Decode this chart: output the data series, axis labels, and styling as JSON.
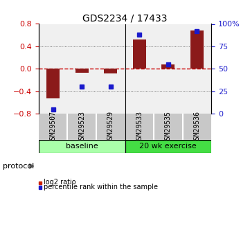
{
  "title": "GDS2234 / 17433",
  "samples": [
    "GSM29507",
    "GSM29523",
    "GSM29529",
    "GSM29533",
    "GSM29535",
    "GSM29536"
  ],
  "log2_ratio": [
    -0.52,
    -0.07,
    -0.08,
    0.52,
    0.08,
    0.68
  ],
  "percentile_rank": [
    5,
    30,
    30,
    88,
    55,
    92
  ],
  "left_ylim": [
    -0.8,
    0.8
  ],
  "right_ylim": [
    0,
    100
  ],
  "left_yticks": [
    -0.8,
    -0.4,
    0,
    0.4,
    0.8
  ],
  "right_yticks": [
    0,
    25,
    50,
    75,
    100
  ],
  "right_yticklabels": [
    "0",
    "25",
    "50",
    "75",
    "100%"
  ],
  "bar_color": "#8B1A1A",
  "dot_color": "#1A1ACC",
  "zero_line_color": "#CC0000",
  "dot_line_color": "#888888",
  "groups": [
    {
      "label": "baseline",
      "start": 0,
      "end": 3,
      "color": "#AAFFAA"
    },
    {
      "label": "20 wk exercise",
      "start": 3,
      "end": 6,
      "color": "#44DD44"
    }
  ],
  "group_label": "protocol",
  "legend_items": [
    {
      "label": "log2 ratio",
      "color": "#CC2200"
    },
    {
      "label": "percentile rank within the sample",
      "color": "#1A1ACC"
    }
  ],
  "sample_box_color": "#C8C8C8",
  "plot_bg_color": "#F0F0F0"
}
